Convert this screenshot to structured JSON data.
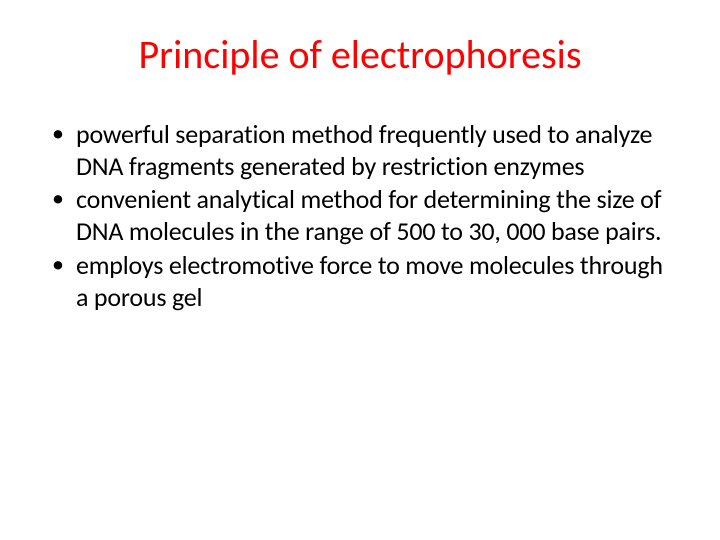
{
  "slide": {
    "background_color": "#ffffff",
    "title": {
      "text": "Principle of electrophoresis",
      "color": "#ff0000",
      "font_size_pt": 40,
      "font_weight": 400,
      "align": "center"
    },
    "body": {
      "text_color": "#000000",
      "font_size_pt": 26,
      "bullet_char": "•",
      "bullets": [
        "powerful separation method frequently used to analyze DNA fragments generated by restriction enzymes",
        "convenient analytical method for determining the size of DNA molecules in the range of 500 to 30, 000 base pairs.",
        "employs electromotive force to move molecules through a porous gel"
      ]
    }
  }
}
